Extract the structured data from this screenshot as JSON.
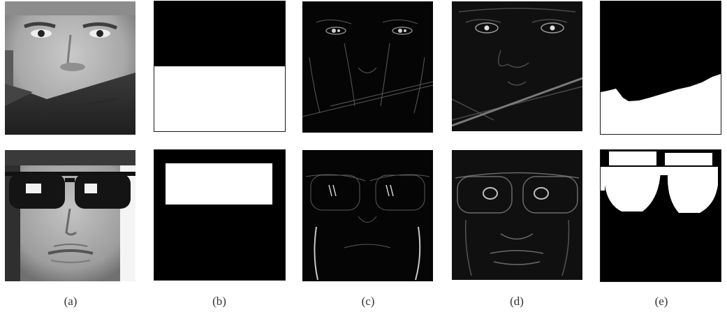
{
  "figure": {
    "captions": [
      "(a)",
      "(b)",
      "(c)",
      "(d)",
      "(e)"
    ]
  },
  "colors": {
    "background": "#ffffff",
    "mask_white": "#ffffff",
    "mask_black": "#000000",
    "caption_text": "#333333"
  },
  "rows": [
    {
      "occlusion": "scarf"
    },
    {
      "occlusion": "sunglasses"
    }
  ]
}
